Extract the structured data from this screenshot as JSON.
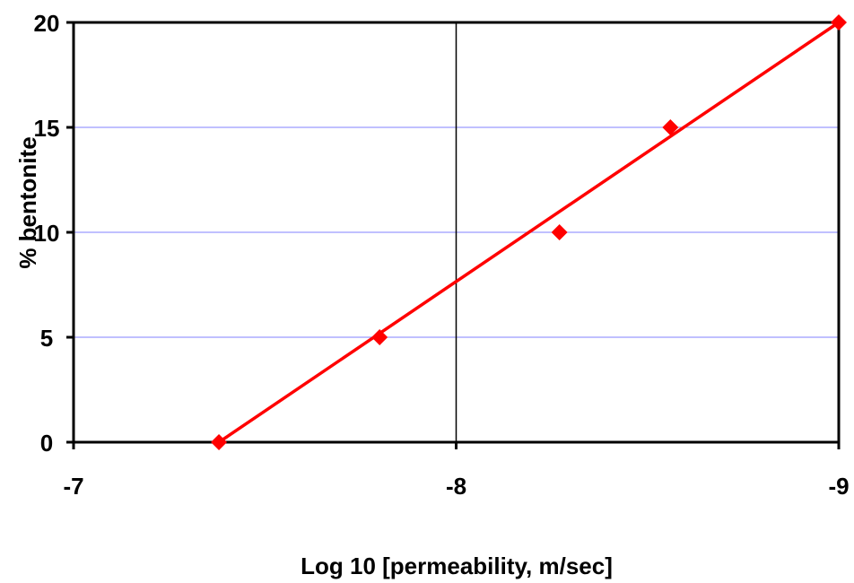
{
  "chart_data": {
    "type": "scatter",
    "title": "",
    "xlabel": "Log 10 [permeability, m/sec]",
    "ylabel": "% bentonite",
    "xlim": [
      -7,
      -9
    ],
    "ylim": [
      0,
      20
    ],
    "x_ticks": [
      -7,
      -8,
      -9
    ],
    "x_tick_labels": [
      "-7",
      "-8",
      "-9"
    ],
    "y_ticks": [
      0,
      5,
      10,
      15,
      20
    ],
    "y_tick_labels": [
      "0",
      "5",
      "10",
      "15",
      "20"
    ],
    "grid": {
      "horizontal": true,
      "vertical_at_x": -8
    },
    "series": [
      {
        "marker": "diamond",
        "color": "#ff0000",
        "x": [
          -7.38,
          -7.8,
          -8.27,
          -8.56
        ],
        "y": [
          0,
          5,
          10,
          15
        ]
      }
    ],
    "trendline": {
      "color": "#ff0000",
      "x": [
        -7.38,
        -9.0
      ],
      "y": [
        0,
        20
      ]
    },
    "extra_points": [
      {
        "x": -9.0,
        "y": 20
      }
    ],
    "colors": {
      "series": "#ff0000",
      "gridline": "#8080ff",
      "axis": "#000000"
    }
  }
}
